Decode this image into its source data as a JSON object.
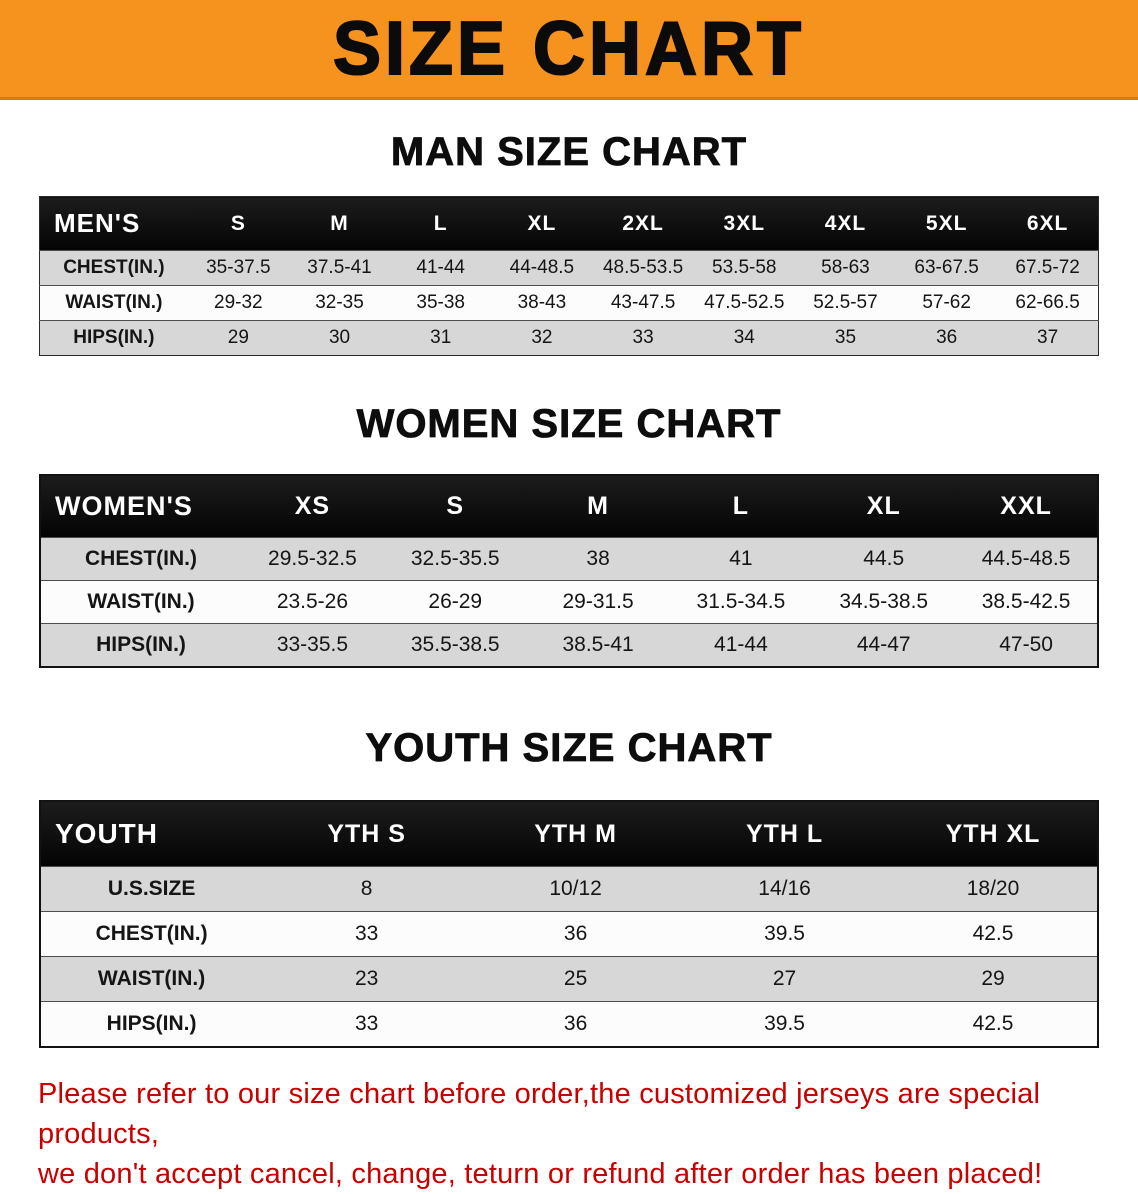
{
  "banner": {
    "title": "SIZE CHART",
    "background_color": "#F6921E",
    "title_color": "#0B0B0B"
  },
  "chart_data": [
    {
      "type": "table",
      "name": "men",
      "title": "MAN SIZE CHART",
      "header": [
        "MEN'S",
        "S",
        "M",
        "L",
        "XL",
        "2XL",
        "3XL",
        "4XL",
        "5XL",
        "6XL"
      ],
      "rows": [
        [
          "CHEST(IN.)",
          "35-37.5",
          "37.5-41",
          "41-44",
          "44-48.5",
          "48.5-53.5",
          "53.5-58",
          "58-63",
          "63-67.5",
          "67.5-72"
        ],
        [
          "WAIST(IN.)",
          "29-32",
          "32-35",
          "35-38",
          "38-43",
          "43-47.5",
          "47.5-52.5",
          "52.5-57",
          "57-62",
          "62-66.5"
        ],
        [
          "HIPS(IN.)",
          "29",
          "30",
          "31",
          "32",
          "33",
          "34",
          "35",
          "36",
          "37"
        ]
      ]
    },
    {
      "type": "table",
      "name": "women",
      "title": "WOMEN SIZE CHART",
      "header": [
        "WOMEN'S",
        "XS",
        "S",
        "M",
        "L",
        "XL",
        "XXL"
      ],
      "rows": [
        [
          "CHEST(IN.)",
          "29.5-32.5",
          "32.5-35.5",
          "38",
          "41",
          "44.5",
          "44.5-48.5"
        ],
        [
          "WAIST(IN.)",
          "23.5-26",
          "26-29",
          "29-31.5",
          "31.5-34.5",
          "34.5-38.5",
          "38.5-42.5"
        ],
        [
          "HIPS(IN.)",
          "33-35.5",
          "35.5-38.5",
          "38.5-41",
          "41-44",
          "44-47",
          "47-50"
        ]
      ]
    },
    {
      "type": "table",
      "name": "youth",
      "title": "YOUTH SIZE CHART",
      "header": [
        "YOUTH",
        "YTH S",
        "YTH M",
        "YTH L",
        "YTH XL"
      ],
      "rows": [
        [
          "U.S.SIZE",
          "8",
          "10/12",
          "14/16",
          "18/20"
        ],
        [
          "CHEST(IN.)",
          "33",
          "36",
          "39.5",
          "42.5"
        ],
        [
          "WAIST(IN.)",
          "23",
          "25",
          "27",
          "29"
        ],
        [
          "HIPS(IN.)",
          "33",
          "36",
          "39.5",
          "42.5"
        ]
      ]
    }
  ],
  "disclaimer": {
    "color": "#C80000",
    "line1": "Please refer to our size chart before order,the customized jerseys are special products,",
    "line2": "we don't accept cancel, change, teturn or refund after order has been placed!"
  }
}
